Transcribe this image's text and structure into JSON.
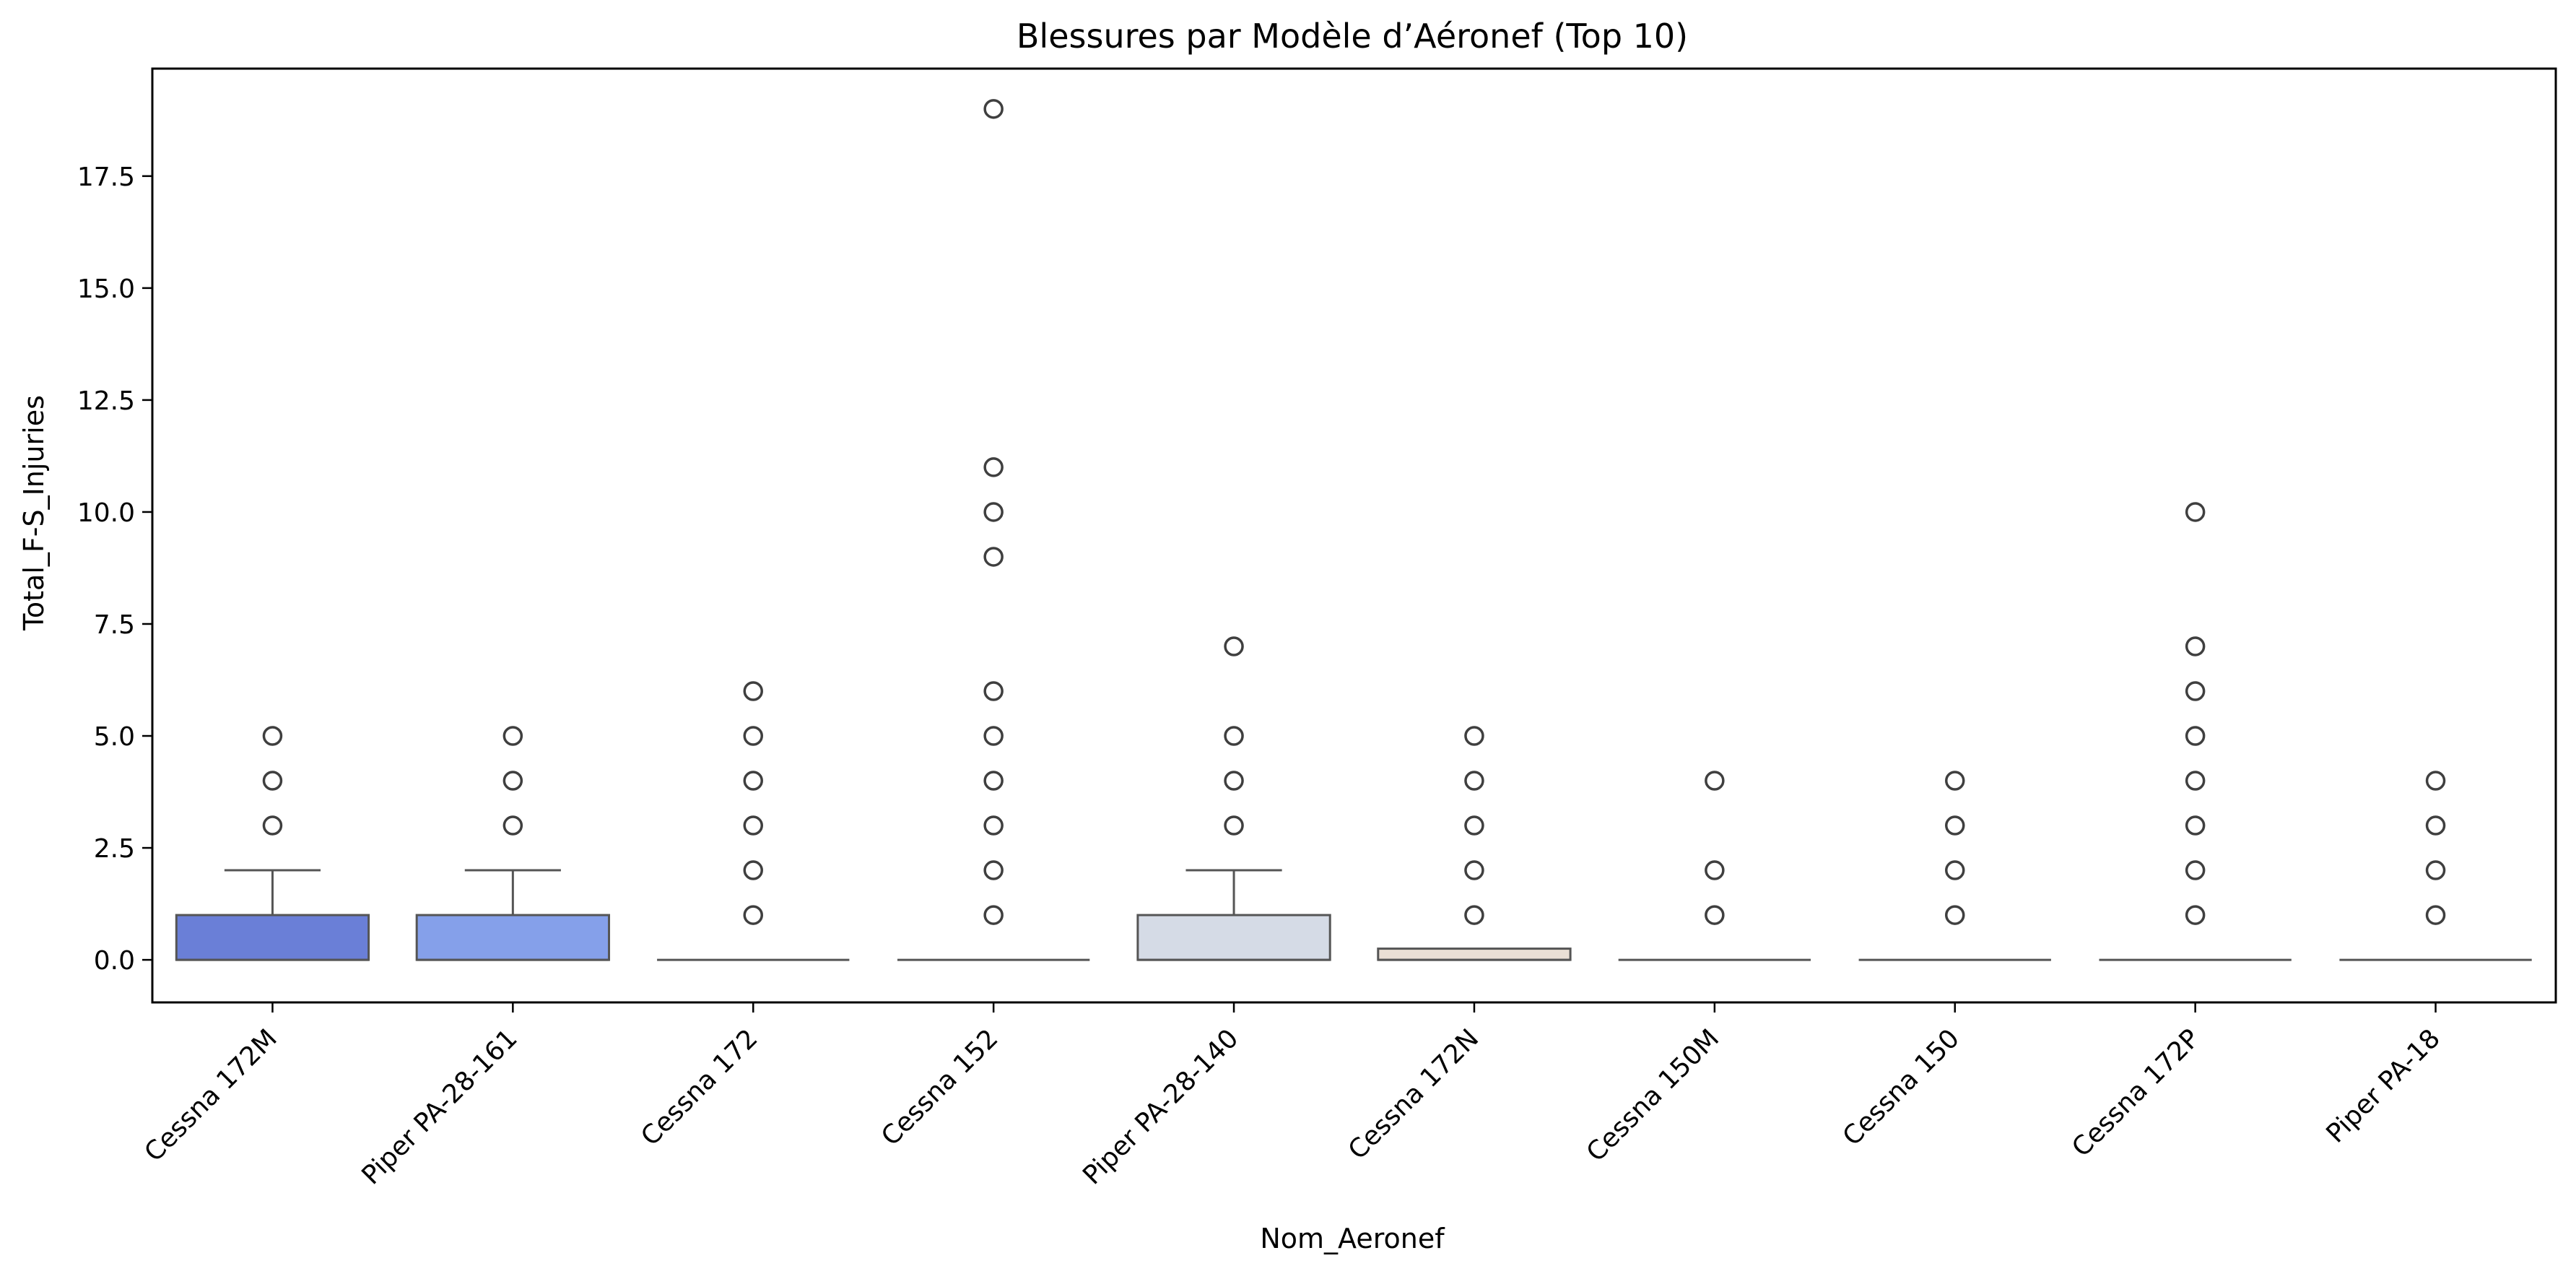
{
  "chart_data": {
    "type": "box",
    "title": "Blessures par Modèle d’Aéronef (Top 10)",
    "xlabel": "Nom_Aeronef",
    "ylabel": "Total_F-S_Injuries",
    "ylim": [
      -0.95,
      19.9
    ],
    "yticks": [
      "0.0",
      "2.5",
      "5.0",
      "7.5",
      "10.0",
      "12.5",
      "15.0",
      "17.5"
    ],
    "grid": false,
    "categories": [
      "Cessna 172M",
      "Piper PA-28-161",
      "Cessna 172",
      "Cessna 152",
      "Piper PA-28-140",
      "Cessna 172N",
      "Cessna 150M",
      "Cessna 150",
      "Cessna 172P",
      "Piper PA-18"
    ],
    "boxes": [
      {
        "q1": 0,
        "median": 0,
        "q3": 1,
        "whisker_low": 0,
        "whisker_high": 2,
        "outliers": [
          3,
          4,
          5
        ],
        "color": "#6a7fd7"
      },
      {
        "q1": 0,
        "median": 0,
        "q3": 1,
        "whisker_low": 0,
        "whisker_high": 2,
        "outliers": [
          3,
          4,
          5
        ],
        "color": "#85a0ea"
      },
      {
        "q1": 0,
        "median": 0,
        "q3": 0,
        "whisker_low": 0,
        "whisker_high": 0,
        "outliers": [
          1,
          2,
          3,
          4,
          5,
          6
        ],
        "color": "#a6bdf5"
      },
      {
        "q1": 0,
        "median": 0,
        "q3": 0,
        "whisker_low": 0,
        "whisker_high": 0,
        "outliers": [
          1,
          2,
          3,
          4,
          5,
          6,
          9,
          10,
          11,
          19
        ],
        "color": "#c2d2f3"
      },
      {
        "q1": 0,
        "median": 0,
        "q3": 1,
        "whisker_low": 0,
        "whisker_high": 2,
        "outliers": [
          3,
          4,
          5,
          7
        ],
        "color": "#d5dbe6"
      },
      {
        "q1": 0,
        "median": 0,
        "q3": 0.25,
        "whisker_low": 0,
        "whisker_high": 0.25,
        "outliers": [
          1,
          2,
          3,
          4,
          5
        ],
        "color": "#eadfd5"
      },
      {
        "q1": 0,
        "median": 0,
        "q3": 0,
        "whisker_low": 0,
        "whisker_high": 0,
        "outliers": [
          1,
          2,
          4
        ],
        "color": "#f2cdb9"
      },
      {
        "q1": 0,
        "median": 0,
        "q3": 0,
        "whisker_low": 0,
        "whisker_high": 0,
        "outliers": [
          1,
          2,
          3,
          4
        ],
        "color": "#f5b59a"
      },
      {
        "q1": 0,
        "median": 0,
        "q3": 0,
        "whisker_low": 0,
        "whisker_high": 0,
        "outliers": [
          1,
          2,
          3,
          4,
          5,
          6,
          7,
          10
        ],
        "color": "#ef957b"
      },
      {
        "q1": 0,
        "median": 0,
        "q3": 0,
        "whisker_low": 0,
        "whisker_high": 0,
        "outliers": [
          1,
          2,
          3,
          4
        ],
        "color": "#e0735f"
      }
    ]
  }
}
